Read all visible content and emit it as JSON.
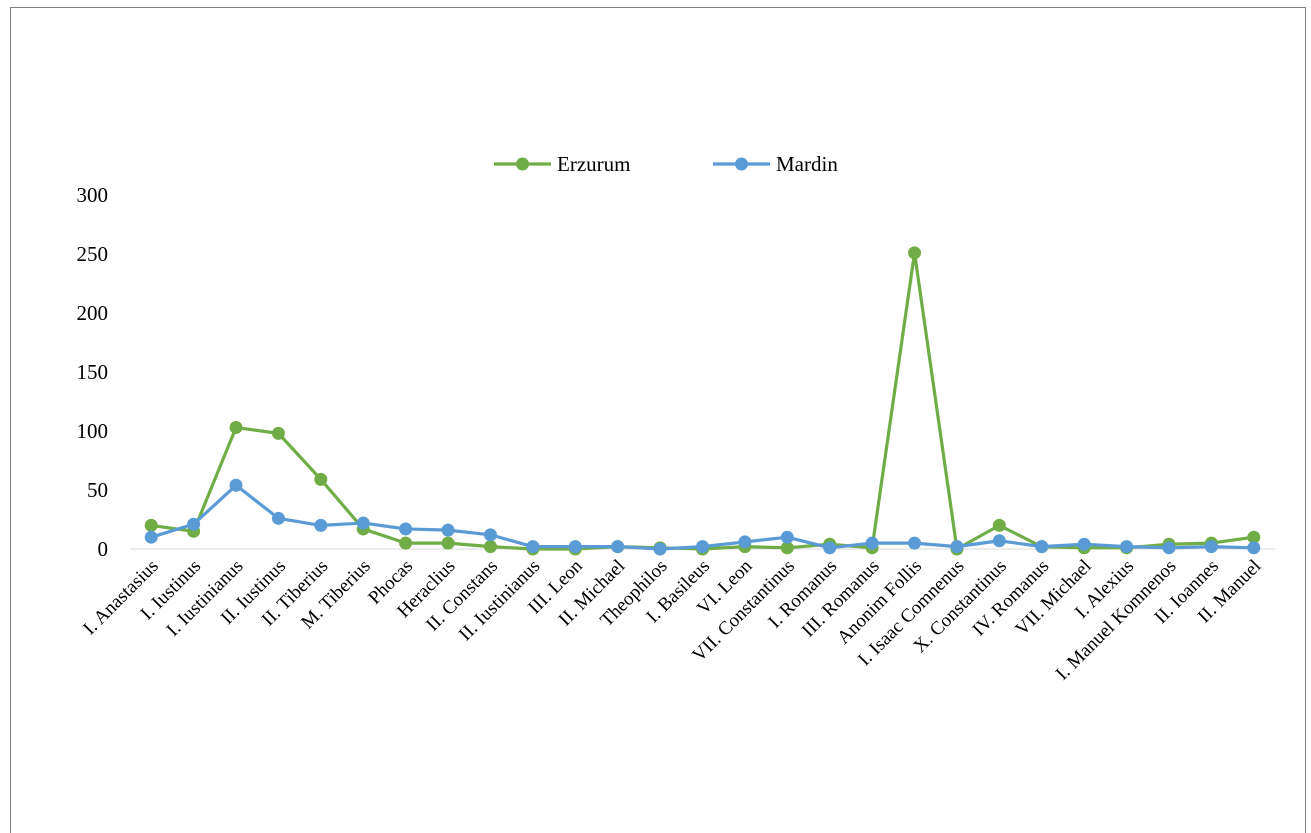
{
  "chart_data": {
    "type": "line",
    "categories": [
      "I. Anastasius",
      "I. Iustinus",
      "I. Iustinianus",
      "II. Iustinus",
      "II. Tiberius",
      "M. Tiberius",
      "Phocas",
      "Heraclius",
      "II. Constans",
      "II. Iustinianus",
      "III. Leon",
      "II. Michael",
      "Theophilos",
      "I. Basileus",
      "VI. Leon",
      "VII. Constantinus",
      "I. Romanus",
      "III. Romanus",
      "Anonim Follis",
      "I. Isaac Comnenus",
      "X. Constantinus",
      "IV. Romanus",
      "VII. Michael",
      "I. Alexius",
      "I. Manuel Komnenos",
      "II. Ioannes",
      "II. Manuel"
    ],
    "series": [
      {
        "name": "Erzurum",
        "color": "#70ad47",
        "values": [
          20,
          15,
          103,
          98,
          59,
          17,
          5,
          5,
          2,
          0,
          0,
          2,
          1,
          0,
          2,
          1,
          4,
          1,
          251,
          0,
          20,
          2,
          1,
          1,
          4,
          5,
          10
        ]
      },
      {
        "name": "Mardin",
        "color": "#5b9bd5",
        "values": [
          10,
          21,
          54,
          26,
          20,
          22,
          17,
          16,
          12,
          2,
          2,
          2,
          0,
          2,
          6,
          10,
          1,
          5,
          5,
          2,
          7,
          2,
          4,
          2,
          1,
          2,
          1
        ]
      }
    ],
    "ylim": [
      0,
      300
    ],
    "yticks": [
      "0",
      "50",
      "100",
      "150",
      "200",
      "250",
      "300"
    ],
    "grid": false,
    "legend": "top-center",
    "title": "",
    "xlabel": "",
    "ylabel": ""
  }
}
